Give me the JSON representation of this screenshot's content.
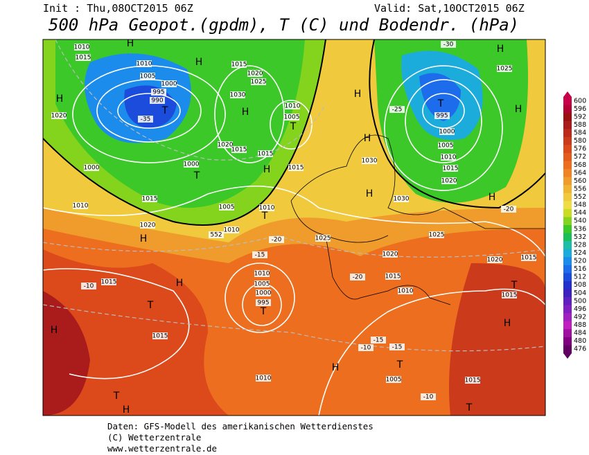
{
  "header": {
    "init": "Init : Thu,08OCT2015 06Z",
    "valid": "Valid: Sat,10OCT2015 06Z",
    "title": "500 hPa Geopot.(gpdm), T (C) und Bodendr. (hPa)"
  },
  "colorbar": {
    "ticks": [
      600,
      596,
      592,
      588,
      584,
      580,
      576,
      572,
      568,
      564,
      560,
      556,
      552,
      548,
      544,
      540,
      536,
      532,
      528,
      524,
      520,
      516,
      512,
      508,
      504,
      500,
      496,
      492,
      488,
      484,
      480,
      476
    ],
    "colors": [
      "#c8004a",
      "#b00034",
      "#9a1010",
      "#aa1c1c",
      "#bc2a1c",
      "#cc3a1c",
      "#dc4a1c",
      "#e45c1c",
      "#ec6e1e",
      "#f08424",
      "#f09c2c",
      "#f0b432",
      "#f0ca3c",
      "#f0dc44",
      "#c8dc22",
      "#84d41e",
      "#3cc828",
      "#1cbe58",
      "#1cbea8",
      "#1cacdc",
      "#1c8cec",
      "#1c6cec",
      "#1c4cdc",
      "#2430cc",
      "#3c20c0",
      "#6020c0",
      "#8020c0",
      "#a020c0",
      "#c020c0",
      "#a010a0",
      "#800080",
      "#600060"
    ]
  },
  "map_labels": [
    "H",
    "H",
    "H",
    "T",
    "1010",
    "1015",
    "1010",
    "1005",
    "1000",
    "995",
    "990",
    "1020",
    "-35",
    "1015",
    "1020",
    "1025",
    "1030",
    "H",
    "1010",
    "1005",
    "T",
    "1020",
    "1015",
    "1015",
    "1000",
    "T",
    "H",
    "1015",
    "H",
    "H",
    "1030",
    "H",
    "1030",
    "-30",
    "H",
    "T",
    "995",
    "1000",
    "1005",
    "1010",
    "1015",
    "1020",
    "H",
    "-25",
    "1025",
    "H",
    "-20",
    "1000",
    "1010",
    "1015",
    "1020",
    "H",
    "1005",
    "1010",
    "T",
    "1010",
    "552",
    "-20",
    "1025",
    "1025",
    "1020",
    "1020",
    "1015",
    "-15",
    "1010",
    "1005",
    "1000",
    "995",
    "T",
    "H",
    "-10",
    "1015",
    "T",
    "1015",
    "H",
    "-20",
    "1015",
    "1010",
    "T",
    "1015",
    "H",
    "-15",
    "-10",
    "-15",
    "T",
    "1005",
    "H",
    "1010",
    "1015",
    "-10",
    "T",
    "H",
    "T"
  ],
  "footer": [
    "Daten: GFS-Modell des amerikanischen Wetterdienstes",
    "(C) Wetterzentrale",
    "www.wetterzentrale.de"
  ]
}
